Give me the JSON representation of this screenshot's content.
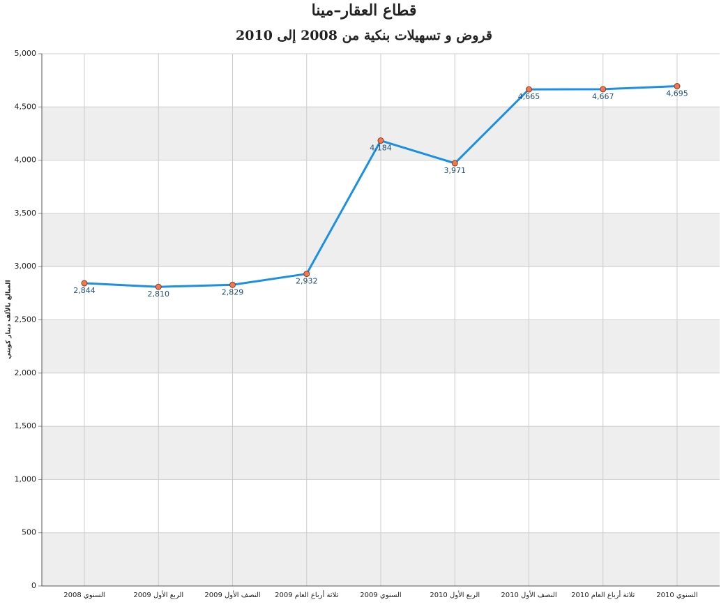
{
  "chart_data": {
    "type": "line",
    "title": "قطاع العقار–مينا",
    "subtitle": "قروض و تسهيلات بنكية من 2008 إلى 2010",
    "y_label": "المبالغ بالألف دينار كويتي",
    "categories": [
      "السنوي 2008",
      "الربع الأول 2009",
      "النصف الأول 2009",
      "ثلاثة أرباع العام 2009",
      "السنوي 2009",
      "الربع الأول 2010",
      "النصف الأول 2010",
      "ثلاثة أرباع العام 2010",
      "السنوي 2010"
    ],
    "values": [
      2844,
      2810,
      2829,
      2932,
      4184,
      3971,
      4665,
      4667,
      4695
    ],
    "value_labels": [
      "2,844",
      "2,810",
      "2,829",
      "2,932",
      "4,184",
      "3,971",
      "4,665",
      "4,667",
      "4,695"
    ],
    "color": "#1a8fe3",
    "marker_color": "#f07850",
    "ylim": [
      0,
      5000
    ],
    "yticks": [
      0,
      500,
      {
        "value": 1000,
        "label": "1,000"
      },
      {
        "value": 1500,
        "label": "1,500"
      },
      {
        "value": 2000,
        "label": "2,000"
      },
      {
        "value": 2500,
        "label": "2,500"
      },
      {
        "value": 3000,
        "label": "3,000"
      },
      {
        "value": 3500,
        "label": "3,500"
      },
      {
        "value": 4000,
        "label": "4,000"
      },
      {
        "value": 4500,
        "label": "4,500"
      },
      {
        "value": 5000,
        "label": "5,000"
      }
    ],
    "grid": true
  }
}
